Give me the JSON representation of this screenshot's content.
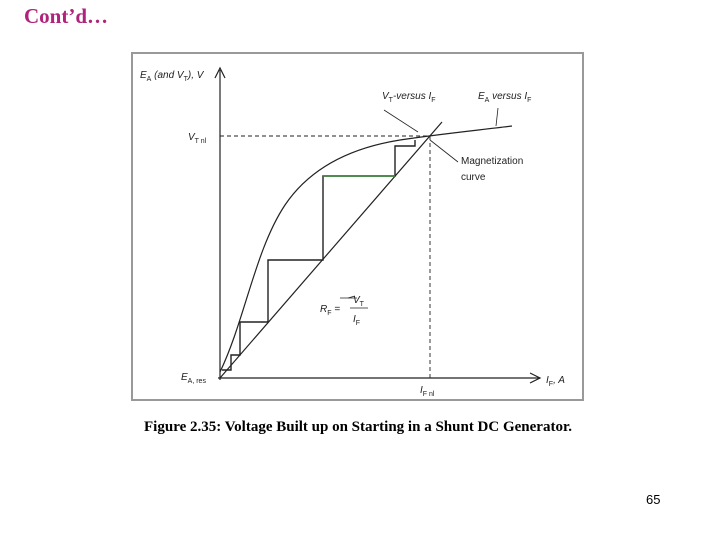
{
  "title": "Cont’d…",
  "figure": {
    "y_axis_label": [
      "E",
      "A",
      " (and V",
      "T",
      "), V"
    ],
    "vt_nl_label": [
      "V",
      "T nl"
    ],
    "vt_curve_label": [
      "V",
      "T",
      "-versus I",
      "F"
    ],
    "ea_curve_label": [
      "E",
      "A",
      " versus I",
      "F"
    ],
    "magnetization_label": [
      "Magnetization",
      "curve"
    ],
    "rf_label": [
      "R",
      "F",
      " ="
    ],
    "rf_numerator": [
      "V",
      "T"
    ],
    "rf_denominator": [
      "I",
      "F"
    ],
    "ea_res_label": [
      "E",
      "A, res"
    ],
    "if_nl_label": [
      "I",
      "F nl"
    ],
    "x_axis_label": [
      "I",
      "F",
      ", A"
    ]
  },
  "caption": "Figure 2.35: Voltage Built up on Starting in a Shunt DC Generator.",
  "page_number": "65"
}
